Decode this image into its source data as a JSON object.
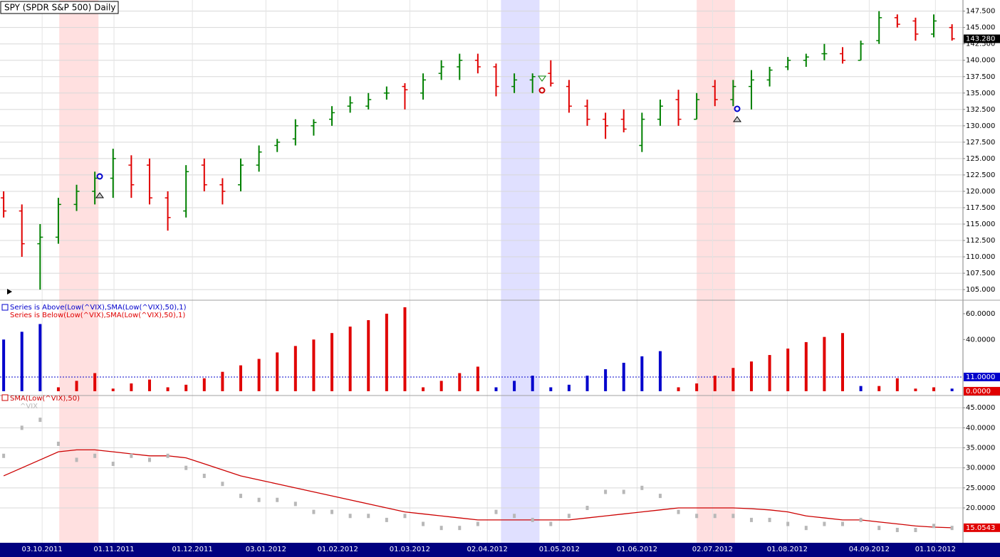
{
  "title": "SPY (SPDR S&P 500) Daily",
  "chart_data": [
    {
      "type": "ohlc",
      "xlim": [
        -0.2,
        52.6
      ],
      "ylim": [
        103.6,
        149.2
      ],
      "grid": true,
      "up_color": "#008000",
      "down_color": "#e00000",
      "bands": [
        {
          "from": 3.05,
          "to": 5.2,
          "color": "#ffe0e0"
        },
        {
          "from": 27.27,
          "to": 29.38,
          "color": "#e0e0ff"
        },
        {
          "from": 38.0,
          "to": 40.1,
          "color": "#ffe0e0"
        }
      ],
      "yticks": [
        {
          "value": 147.5,
          "label": "147.500"
        },
        {
          "value": 145,
          "label": "145.000"
        },
        {
          "value": 142.5,
          "label": "142.500"
        },
        {
          "value": 140,
          "label": "140.000"
        },
        {
          "value": 137.5,
          "label": "137.500"
        },
        {
          "value": 135,
          "label": "135.000"
        },
        {
          "value": 132.5,
          "label": "132.500"
        },
        {
          "value": 130,
          "label": "130.000"
        },
        {
          "value": 127.5,
          "label": "127.500"
        },
        {
          "value": 125,
          "label": "125.000"
        },
        {
          "value": 122.5,
          "label": "122.500"
        },
        {
          "value": 120,
          "label": "120.000"
        },
        {
          "value": 117.5,
          "label": "117.500"
        },
        {
          "value": 115,
          "label": "115.000"
        },
        {
          "value": 112.5,
          "label": "112.500"
        },
        {
          "value": 110,
          "label": "110.000"
        },
        {
          "value": 107.5,
          "label": "107.500"
        },
        {
          "value": 105,
          "label": "105.000"
        }
      ],
      "last_value": {
        "value": 143.28,
        "label": "143.280",
        "color": "#000000"
      },
      "open": [
        119,
        117,
        112,
        113,
        118,
        120,
        122,
        124,
        124,
        119,
        117,
        124,
        121,
        121,
        124,
        127,
        128,
        130,
        131,
        133,
        133,
        135,
        136,
        135,
        138,
        139,
        140,
        139,
        136,
        137,
        138,
        136,
        133,
        131,
        131,
        127,
        131,
        134,
        131,
        136,
        134,
        136,
        137,
        139,
        140,
        141,
        141,
        140,
        143,
        146.5,
        146,
        144,
        145
      ],
      "high": [
        120,
        118,
        115,
        119,
        121,
        123,
        126.5,
        125.5,
        125,
        120,
        124,
        125,
        122,
        125,
        127,
        128,
        131,
        131,
        133,
        134.5,
        135,
        136,
        136.5,
        138,
        140,
        141,
        141,
        139.5,
        138,
        138,
        140,
        137,
        134,
        132,
        132.5,
        132,
        134,
        135.5,
        135,
        137,
        137,
        138.5,
        139,
        140.5,
        141,
        142.5,
        142,
        143,
        147.5,
        147,
        146.5,
        147,
        145.5
      ],
      "low": [
        116,
        110,
        105,
        112,
        117,
        118,
        119,
        119,
        118,
        114,
        116,
        120,
        118,
        120,
        123,
        126,
        127,
        128.5,
        130,
        132,
        132.5,
        134,
        132.5,
        134,
        137,
        137,
        138,
        134.5,
        135,
        135,
        136,
        132,
        130,
        128,
        129,
        126,
        130,
        130,
        131,
        133,
        133,
        132.5,
        136,
        138.5,
        139,
        140,
        139.5,
        140,
        142.5,
        145,
        143,
        143.5,
        143
      ],
      "close": [
        117,
        112,
        113,
        118,
        120,
        122,
        125,
        121,
        119,
        116,
        123,
        121,
        120,
        124,
        126,
        127.5,
        130,
        130.5,
        132,
        133.5,
        134,
        135,
        135.5,
        137,
        139,
        140,
        139,
        136,
        137,
        137.5,
        136.5,
        133,
        131,
        130,
        129.5,
        131,
        133,
        131,
        134,
        134,
        136,
        137,
        138.5,
        140,
        140.5,
        141,
        140,
        142.5,
        146.5,
        145.5,
        144,
        146,
        143.28
      ]
    },
    {
      "type": "bar",
      "xlim": [
        -0.2,
        52.6
      ],
      "ylim": [
        -2.8,
        68.8
      ],
      "grid": false,
      "yticks": [
        {
          "value": 60,
          "label": "60.0000"
        },
        {
          "value": 40,
          "label": "40.0000"
        }
      ],
      "threshold": {
        "value": 11,
        "label": "11.0000",
        "color": "#0000cc"
      },
      "last_value": {
        "value": 0,
        "label": "0.0000",
        "color": "#e00000"
      },
      "series": [
        {
          "name": "Series is Above(Low(^VIX),SMA(Low(^VIX),50),1)",
          "color": "#0000cc",
          "values": [
            40,
            46,
            52,
            null,
            null,
            null,
            null,
            null,
            null,
            null,
            null,
            null,
            null,
            null,
            null,
            null,
            null,
            null,
            null,
            null,
            null,
            null,
            null,
            null,
            null,
            null,
            null,
            3,
            8,
            12,
            3,
            5,
            12,
            17,
            22,
            27,
            31,
            null,
            null,
            null,
            null,
            null,
            null,
            null,
            null,
            null,
            null,
            4,
            null,
            null,
            null,
            null,
            2
          ]
        },
        {
          "name": "Series is Below(Low(^VIX),SMA(Low(^VIX),50),1)",
          "color": "#e00000",
          "values": [
            null,
            null,
            null,
            3,
            8,
            14,
            2,
            6,
            9,
            3,
            5,
            10,
            15,
            20,
            25,
            30,
            35,
            40,
            45,
            50,
            55,
            60,
            65,
            3,
            8,
            14,
            19,
            null,
            null,
            null,
            null,
            null,
            null,
            null,
            null,
            null,
            null,
            3,
            6,
            12,
            18,
            23,
            28,
            33,
            38,
            42,
            45,
            null,
            4,
            10,
            2,
            3,
            null
          ]
        }
      ]
    },
    {
      "type": "line",
      "xlim": [
        -0.2,
        52.6
      ],
      "ylim": [
        11.3,
        47.7
      ],
      "grid": true,
      "yticks": [
        {
          "value": 45,
          "label": "45.0000"
        },
        {
          "value": 40,
          "label": "40.0000"
        },
        {
          "value": 35,
          "label": "35.0000"
        },
        {
          "value": 30,
          "label": "30.0000"
        },
        {
          "value": 25,
          "label": "25.0000"
        },
        {
          "value": 20,
          "label": "20.0000"
        }
      ],
      "last_value": {
        "value": 15.0543,
        "label": "15.0543",
        "color": "#e00000"
      },
      "xticks": [
        {
          "value": 2.11,
          "label": "03.10.2011"
        },
        {
          "value": 6.05,
          "label": "01.11.2011"
        },
        {
          "value": 10.35,
          "label": "01.12.2011"
        },
        {
          "value": 14.38,
          "label": "03.01.2012"
        },
        {
          "value": 18.32,
          "label": "01.02.2012"
        },
        {
          "value": 22.27,
          "label": "01.03.2012"
        },
        {
          "value": 26.52,
          "label": "02.04.2012"
        },
        {
          "value": 30.47,
          "label": "01.05.2012"
        },
        {
          "value": 34.73,
          "label": "01.06.2012"
        },
        {
          "value": 38.87,
          "label": "02.07.2012"
        },
        {
          "value": 42.97,
          "label": "01.08.2012"
        },
        {
          "value": 47.46,
          "label": "04.09.2012"
        },
        {
          "value": 51.09,
          "label": "01.10.2012"
        }
      ],
      "series": [
        {
          "name": "SMA(Low(^VIX),50)",
          "color": "#cc0000",
          "style": "line",
          "values": [
            28,
            30,
            32,
            34,
            34.5,
            34.5,
            34,
            33.5,
            33,
            33,
            32.5,
            31,
            29.5,
            28,
            27,
            26,
            25,
            24,
            23,
            22,
            21,
            20,
            19,
            18.5,
            18,
            17.5,
            17,
            17,
            17,
            17,
            17,
            17,
            17.5,
            18,
            18.5,
            19,
            19.5,
            20,
            20,
            20,
            20,
            19.8,
            19.5,
            19,
            18,
            17.5,
            17,
            17,
            16.5,
            16,
            15.5,
            15.2,
            15.0543
          ]
        },
        {
          "name": "^VIX",
          "color": "#b8b8b8",
          "style": "points",
          "values": [
            33,
            40,
            42,
            36,
            32,
            33,
            31,
            33,
            32,
            33,
            30,
            28,
            26,
            23,
            22,
            22,
            21,
            19,
            19,
            18,
            18,
            17,
            18,
            16,
            15,
            15,
            16,
            19,
            18,
            17,
            16,
            18,
            20,
            24,
            24,
            25,
            23,
            19,
            18,
            18,
            18,
            17,
            17,
            16,
            15,
            16,
            16,
            17,
            15,
            14.5,
            14.5,
            15.5,
            15
          ]
        }
      ]
    }
  ]
}
